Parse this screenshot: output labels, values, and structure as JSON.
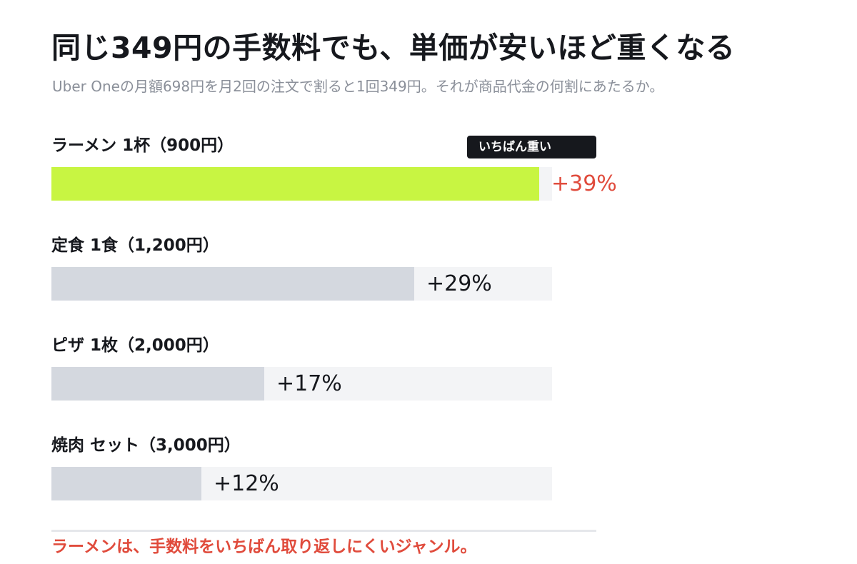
{
  "header": {
    "title": "同じ349円の手数料でも、単価が安いほど重くなる",
    "subtitle": "Uber Oneの月額698円を月2回の注文で割ると1回349円。それが商品代金の何割にあたるか。"
  },
  "chart_data": {
    "type": "bar",
    "orientation": "horizontal",
    "title": "同じ349円の手数料でも、単価が安いほど重くなる",
    "subtitle": "Uber Oneの月額698円を月2回の注文で割ると1回349円。それが商品代金の何割にあたるか。",
    "categories": [
      "ラーメン 1杯（900円）",
      "定食 1食（1,200円）",
      "ピザ 1枚（2,000円）",
      "焼肉 セット（3,000円）"
    ],
    "values": [
      39,
      29,
      17,
      12
    ],
    "value_labels": [
      "+39%",
      "+29%",
      "+17%",
      "+12%"
    ],
    "xlim": [
      0,
      40
    ],
    "highlight_index": 0,
    "highlight_badge": "いちばん重い",
    "colors": {
      "highlight_bar": "#c8f542",
      "bar": "#d4d8df",
      "track": "#f3f4f6",
      "highlight_value": "#e04b3c",
      "value": "#16181d",
      "badge_bg": "#16181d",
      "badge_text": "#ffffff"
    },
    "grid": false,
    "legend": "none"
  },
  "footer": {
    "note": "ラーメンは、手数料をいちばん取り返しにくいジャンル。"
  }
}
